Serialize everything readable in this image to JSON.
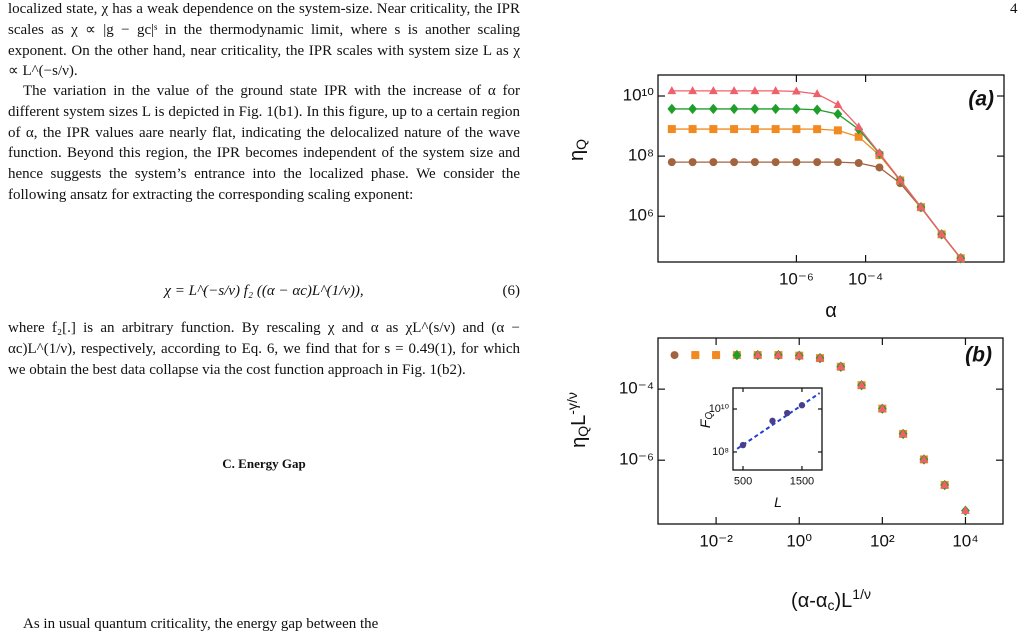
{
  "page_number": "4",
  "text": {
    "p1": "localized state, χ has a weak dependence on the system-size. Near criticality, the IPR scales as χ ∝ |g − gc|ˢ in the thermodynamic limit, where s is another scaling exponent. On the other hand, near criticality, the IPR scales with system size L as χ ∝ L^(−s/ν).",
    "p2": "The variation in the value of the ground state IPR with the increase of α for different system sizes L is depicted in Fig. 1(b1). In this figure, up to a certain region of α, the IPR values aare nearly flat, indicating the delocalized nature of the wave function. Beyond this region, the IPR becomes independent of the system size and hence suggests the system’s entrance into the localized phase. We consider the following ansatz for extracting the corresponding scaling exponent:",
    "equation": "χ = L^(−s/ν) f₂ ((α − αc)L^(1/ν)),",
    "equation_number": "(6)",
    "p3": "where f₂[.] is an arbitrary function. By rescaling χ and α as χL^(s/ν) and (α − αc)L^(1/ν), respectively, according to Eq. 6, we find that for s = 0.49(1), for which we obtain the best data collapse via the cost function approach in Fig. 1(b2).",
    "heading": "C.   Energy Gap",
    "p4": "As in usual quantum criticality, the energy gap between the"
  },
  "chart_data": [
    {
      "type": "scatter",
      "panel_label": "(a)",
      "xlabel": [
        {
          "t": "α"
        }
      ],
      "ylabel": [
        {
          "t": "η"
        },
        {
          "t": "Q",
          "sub": true
        }
      ],
      "xlog": true,
      "ylog": true,
      "line": true,
      "xlim": [
        1e-10,
        1
      ],
      "ylim": [
        30000.0,
        50000000000.0
      ],
      "xticks": [
        {
          "value": 1e-06,
          "label": "10⁻⁶"
        },
        {
          "value": 0.0001,
          "label": "10⁻⁴"
        }
      ],
      "yticks": [
        {
          "value": 1000000.0,
          "label": "10⁶"
        },
        {
          "value": 100000000.0,
          "label": "10⁸"
        },
        {
          "value": 10000000000.0,
          "label": "10¹⁰"
        }
      ],
      "x": [
        2.51e-10,
        1e-09,
        3.98e-09,
        1.58e-08,
        6.31e-08,
        2.51e-07,
        1e-06,
        3.98e-06,
        1.58e-05,
        6.31e-05,
        0.000251,
        0.001,
        0.00398,
        0.0158,
        0.0562
      ],
      "series": [
        {
          "color": "#a2633f",
          "marker": "circle",
          "values": [
            63100000.0,
            63100000.0,
            63100000.0,
            63100000.0,
            63100000.0,
            63100000.0,
            63100000.0,
            63100000.0,
            63000000.0,
            59000000.0,
            42000000.0,
            12600000.0,
            1930000.0,
            250000.0,
            40000.0
          ]
        },
        {
          "color": "#f28a22",
          "marker": "square",
          "values": [
            794000000.0,
            794000000.0,
            794000000.0,
            794000000.0,
            794000000.0,
            794000000.0,
            794000000.0,
            790000000.0,
            720000000.0,
            440000000.0,
            108000000.0,
            15500000.0,
            2000000.0,
            250000.0,
            40000.0
          ]
        },
        {
          "color": "#1f9e2a",
          "marker": "diamond",
          "values": [
            3720000000.0,
            3720000000.0,
            3720000000.0,
            3720000000.0,
            3720000000.0,
            3720000000.0,
            3700000000.0,
            3490000000.0,
            2500000000.0,
            780000000.0,
            122000000.0,
            15800000.0,
            2000000.0,
            250000.0,
            40000.0
          ]
        },
        {
          "color": "#f0606a",
          "marker": "triangle",
          "values": [
            14800000000.0,
            14800000000.0,
            14800000000.0,
            14800000000.0,
            14800000000.0,
            14800000000.0,
            14300000000.0,
            11700000000.0,
            5100000000.0,
            930000000.0,
            126000000.0,
            15800000.0,
            2000000.0,
            250000.0,
            40000.0
          ]
        }
      ]
    },
    {
      "type": "scatter",
      "panel_label": "(b)",
      "xlabel": [
        {
          "t": "(α-α"
        },
        {
          "t": "c",
          "sub": true
        },
        {
          "t": ")L"
        },
        {
          "t": "1/ν",
          "sup": true
        }
      ],
      "ylabel": [
        {
          "t": "η"
        },
        {
          "t": "Q",
          "sub": true
        },
        {
          "t": "L"
        },
        {
          "t": "-γ/ν",
          "sup": true
        }
      ],
      "xlog": true,
      "ylog": true,
      "line": false,
      "xlim": [
        0.0004,
        80000.0
      ],
      "ylim": [
        1.6e-08,
        0.00275
      ],
      "xticks": [
        {
          "value": 0.01,
          "label": "10⁻²"
        },
        {
          "value": 1,
          "label": "10⁰"
        },
        {
          "value": 100,
          "label": "10²"
        },
        {
          "value": 10000,
          "label": "10⁴"
        }
      ],
      "yticks": [
        {
          "value": 1e-06,
          "label": "10⁻⁶"
        },
        {
          "value": 0.0001,
          "label": "10⁻⁴"
        }
      ],
      "series": [
        {
          "color": "#a2633f",
          "marker": "circle",
          "x": [
            0.001,
            0.00316,
            0.01,
            0.0316,
            0.1,
            0.316,
            1,
            3.16,
            10,
            31.6,
            100,
            316,
            1000
          ],
          "values": [
            0.00091,
            0.00091,
            0.00091,
            0.00091,
            0.00091,
            0.00091,
            0.000875,
            0.000746,
            0.000427,
            0.000129,
            2.82e-05,
            5.5e-06,
            1.05e-06
          ]
        },
        {
          "color": "#f28a22",
          "marker": "square",
          "x": [
            0.00316,
            0.01,
            0.0316,
            0.1,
            0.316,
            1,
            3.16,
            10,
            31.6,
            100,
            316,
            1000,
            3160
          ],
          "values": [
            0.00091,
            0.00091,
            0.00091,
            0.00091,
            0.00091,
            0.000875,
            0.000746,
            0.000427,
            0.000129,
            2.82e-05,
            5.5e-06,
            1.05e-06,
            2e-07
          ]
        },
        {
          "color": "#1f9e2a",
          "marker": "diamond",
          "x": [
            0.0316,
            0.1,
            0.316,
            1,
            3.16,
            10,
            31.6,
            100,
            316,
            1000,
            3160,
            10000
          ],
          "values": [
            0.00091,
            0.00091,
            0.00091,
            0.000875,
            0.000746,
            0.000427,
            0.000129,
            2.82e-05,
            5.5e-06,
            1.05e-06,
            2e-07,
            3.8e-08
          ]
        },
        {
          "color": "#f0606a",
          "marker": "triangle",
          "x": [
            0.1,
            0.316,
            1,
            3.16,
            10,
            31.6,
            100,
            316,
            1000,
            3160,
            10000
          ],
          "values": [
            0.00091,
            0.00091,
            0.000875,
            0.000746,
            0.000427,
            0.000129,
            2.82e-05,
            5.5e-06,
            1.05e-06,
            2e-07,
            3.8e-08
          ]
        }
      ]
    },
    {
      "type": "scatter",
      "xlabel": [
        {
          "t": "L"
        }
      ],
      "ylabel": [
        {
          "t": "F"
        },
        {
          "t": "Q",
          "sub": true
        }
      ],
      "xlog": false,
      "ylog": true,
      "line": false,
      "xlim": [
        330,
        1840
      ],
      "ylim": [
        14500000.0,
        95000000000.0
      ],
      "xticks": [
        500,
        1500
      ],
      "yticks": [
        {
          "value": 100000000.0,
          "label": "10⁸"
        },
        {
          "value": 10000000000.0,
          "label": "10¹⁰"
        }
      ],
      "series": [
        {
          "color": "#4a3f8a",
          "marker": "circle",
          "x": [
            500,
            1000,
            1250,
            1500
          ],
          "values": [
            210000000.0,
            2800000000.0,
            6500000000.0,
            15000000000.0
          ]
        }
      ],
      "fit": {
        "color": "#1f3fd8",
        "dashed": true,
        "x": [
          400,
          1800
        ],
        "values": [
          140000000.0,
          55000000000.0
        ]
      }
    }
  ]
}
